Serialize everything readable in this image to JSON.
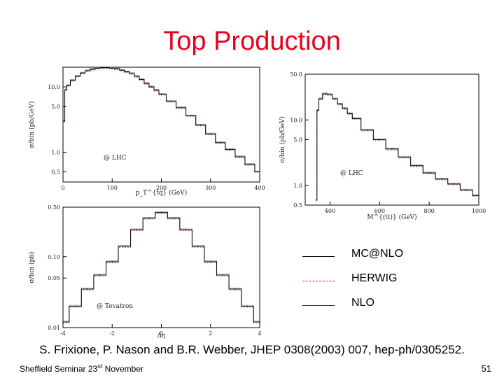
{
  "slide": {
    "title": "Top Production",
    "citation": "S. Frixione, P. Nason and B.R. Webber, JHEP 0308(2003) 007, hep-ph/0305252.",
    "footer_left_pre": "Sheffield Seminar 23",
    "footer_left_sup": "rd",
    "footer_left_post": " November",
    "page_number": "51"
  },
  "legend": [
    {
      "label": "MC@NLO",
      "color": "#000000",
      "style": "solid"
    },
    {
      "label": "HERWIG",
      "color": "#cc2222",
      "style": "dashed"
    },
    {
      "label": "NLO",
      "color": "#1a1aa0",
      "style": "solid"
    }
  ],
  "chart_data": [
    {
      "type": "line",
      "xlabel": "p_T^{tq} (GeV)",
      "ylabel": "σ/bin (pb/GeV)",
      "annotation": "@ LHC",
      "xlim": [
        0,
        400
      ],
      "ylim": [
        0.35,
        20
      ],
      "log_y": true,
      "x_ticks": [
        "0",
        "100",
        "200",
        "300",
        "400"
      ],
      "y_ticks": [
        {
          "v": 10,
          "label": "10.0"
        },
        {
          "v": 5,
          "label": "5.0"
        },
        {
          "v": 1,
          "label": "1.0"
        },
        {
          "v": 0.5,
          "label": "0.5"
        }
      ],
      "x": [
        2,
        5,
        10,
        20,
        30,
        40,
        50,
        60,
        70,
        80,
        90,
        100,
        110,
        120,
        130,
        140,
        150,
        160,
        170,
        180,
        190,
        200,
        220,
        240,
        260,
        280,
        300,
        320,
        340,
        360,
        380,
        400
      ],
      "series": [
        {
          "values": [
            3.0,
            9.0,
            10.5,
            12.6,
            14.6,
            16.3,
            17.7,
            18.6,
            19.3,
            19.6,
            19.6,
            19.3,
            18.9,
            18.0,
            17.0,
            16.0,
            14.5,
            13.0,
            11.3,
            10.0,
            8.9,
            7.7,
            6.0,
            4.8,
            3.6,
            2.6,
            1.9,
            1.4,
            1.1,
            0.85,
            0.65,
            0.5
          ]
        }
      ]
    },
    {
      "type": "line",
      "xlabel": "M^{(tt)} (GeV)",
      "ylabel": "σ/bin (pb/GeV)",
      "annotation": "@ LHC",
      "xlim": [
        300,
        1000
      ],
      "ylim": [
        0.5,
        50
      ],
      "log_y": true,
      "x_ticks": [
        "400",
        "600",
        "800",
        "1000"
      ],
      "y_ticks": [
        {
          "v": 50,
          "label": "50.0"
        },
        {
          "v": 10,
          "label": "10.0"
        },
        {
          "v": 5,
          "label": "5.0"
        },
        {
          "v": 1,
          "label": "1.0"
        },
        {
          "v": 0.5,
          "label": "0.5"
        }
      ],
      "x": [
        345,
        350,
        360,
        380,
        400,
        420,
        440,
        460,
        480,
        500,
        550,
        600,
        650,
        700,
        750,
        800,
        850,
        900,
        950,
        1000
      ],
      "series": [
        {
          "values": [
            0.6,
            14,
            21,
            25,
            24.5,
            21,
            17.5,
            15,
            12.5,
            10.5,
            7.0,
            5.0,
            3.6,
            2.7,
            2.0,
            1.55,
            1.25,
            1.05,
            0.85,
            0.7
          ]
        }
      ]
    },
    {
      "type": "line",
      "xlabel": "Δη",
      "ylabel": "σ/bin (pb)",
      "annotation": "@ Tevatron",
      "xlim": [
        -4,
        4
      ],
      "ylim": [
        0.01,
        0.5
      ],
      "log_y": true,
      "x_ticks": [
        "-4",
        "-2",
        "0",
        "2",
        "4"
      ],
      "y_ticks": [
        {
          "v": 0.5,
          "label": "0.50"
        },
        {
          "v": 0.1,
          "label": "0.10"
        },
        {
          "v": 0.05,
          "label": "0.05"
        },
        {
          "v": 0.01,
          "label": "0.01"
        }
      ],
      "x": [
        -4,
        -3.5,
        -3,
        -2.5,
        -2,
        -1.5,
        -1,
        -0.5,
        0,
        0.5,
        1,
        1.5,
        2,
        2.5,
        3,
        3.5,
        4
      ],
      "series": [
        {
          "values": [
            0.012,
            0.02,
            0.035,
            0.055,
            0.085,
            0.14,
            0.24,
            0.35,
            0.42,
            0.35,
            0.24,
            0.14,
            0.085,
            0.055,
            0.035,
            0.02,
            0.012
          ]
        }
      ]
    }
  ]
}
